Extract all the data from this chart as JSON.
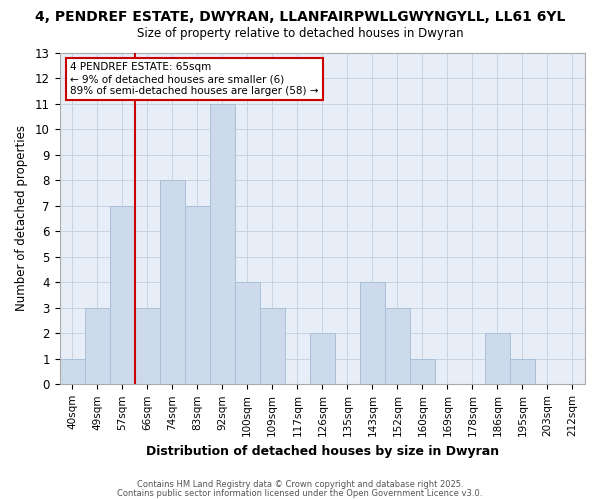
{
  "title": "4, PENDREF ESTATE, DWYRAN, LLANFAIRPWLLGWYNGYLL, LL61 6YL",
  "subtitle": "Size of property relative to detached houses in Dwyran",
  "xlabel": "Distribution of detached houses by size in Dwyran",
  "ylabel": "Number of detached properties",
  "bar_color": "#ccdaeb",
  "bar_edge_color": "#aabfd8",
  "bin_labels": [
    "40sqm",
    "49sqm",
    "57sqm",
    "66sqm",
    "74sqm",
    "83sqm",
    "92sqm",
    "100sqm",
    "109sqm",
    "117sqm",
    "126sqm",
    "135sqm",
    "143sqm",
    "152sqm",
    "160sqm",
    "169sqm",
    "178sqm",
    "186sqm",
    "195sqm",
    "203sqm",
    "212sqm"
  ],
  "bar_heights": [
    1,
    3,
    7,
    3,
    8,
    7,
    11,
    4,
    3,
    0,
    2,
    0,
    4,
    3,
    1,
    0,
    0,
    2,
    1,
    0,
    0
  ],
  "ylim": [
    0,
    13
  ],
  "yticks": [
    0,
    1,
    2,
    3,
    4,
    5,
    6,
    7,
    8,
    9,
    10,
    11,
    12,
    13
  ],
  "vline_pos": 3,
  "vline_color": "#cc0000",
  "annotation_title": "4 PENDREF ESTATE: 65sqm",
  "annotation_line1": "← 9% of detached houses are smaller (6)",
  "annotation_line2": "89% of semi-detached houses are larger (58) →",
  "annotation_box_color": "#ffffff",
  "annotation_box_edge": "#cc0000",
  "footer1": "Contains HM Land Registry data © Crown copyright and database right 2025.",
  "footer2": "Contains public sector information licensed under the Open Government Licence v3.0.",
  "grid_color": "#c8d4e4",
  "background_color": "#ffffff",
  "plot_bg_color": "#e8eef8"
}
